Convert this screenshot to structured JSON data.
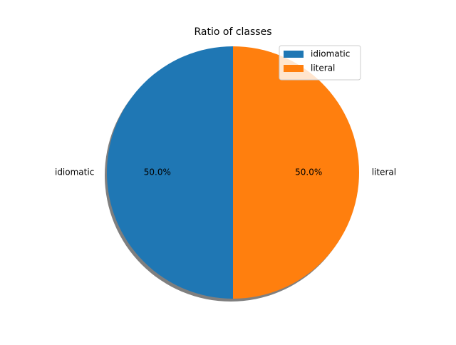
{
  "chart_data": {
    "type": "pie",
    "title": "Ratio of classes",
    "categories": [
      "idiomatic",
      "literal"
    ],
    "values": [
      50.0,
      50.0
    ],
    "percent_labels": [
      "50.0%",
      "50.0%"
    ],
    "colors": [
      "#1f77b4",
      "#ff7f0e"
    ],
    "shadow": true,
    "start_angle": 90,
    "direction": "counterclockwise",
    "legend": {
      "position": "upper-right",
      "entries": [
        "idiomatic",
        "literal"
      ]
    }
  }
}
